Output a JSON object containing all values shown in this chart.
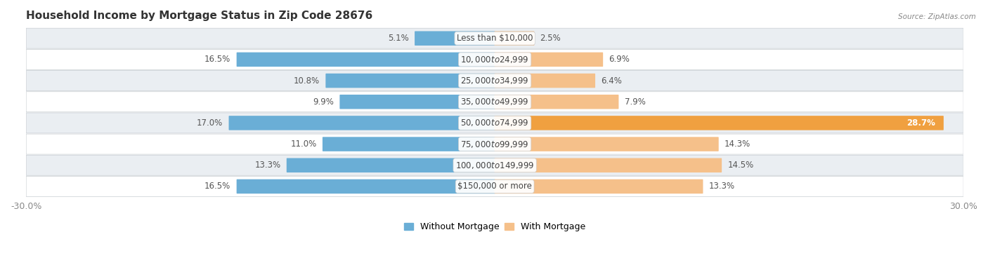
{
  "title": "Household Income by Mortgage Status in Zip Code 28676",
  "source_text": "Source: ZipAtlas.com",
  "categories": [
    "Less than $10,000",
    "$10,000 to $24,999",
    "$25,000 to $34,999",
    "$35,000 to $49,999",
    "$50,000 to $74,999",
    "$75,000 to $99,999",
    "$100,000 to $149,999",
    "$150,000 or more"
  ],
  "without_mortgage": [
    5.1,
    16.5,
    10.8,
    9.9,
    17.0,
    11.0,
    13.3,
    16.5
  ],
  "with_mortgage": [
    2.5,
    6.9,
    6.4,
    7.9,
    28.7,
    14.3,
    14.5,
    13.3
  ],
  "color_without": "#6AAED6",
  "color_with": "#F5C08A",
  "color_with_large": "#F0A040",
  "bg_light": "#EAEEF2",
  "bg_white": "#FFFFFF",
  "xlim": 30.0,
  "legend_labels": [
    "Without Mortgage",
    "With Mortgage"
  ],
  "title_fontsize": 11,
  "label_fontsize": 8.5,
  "value_fontsize": 8.5,
  "bar_height": 0.62
}
